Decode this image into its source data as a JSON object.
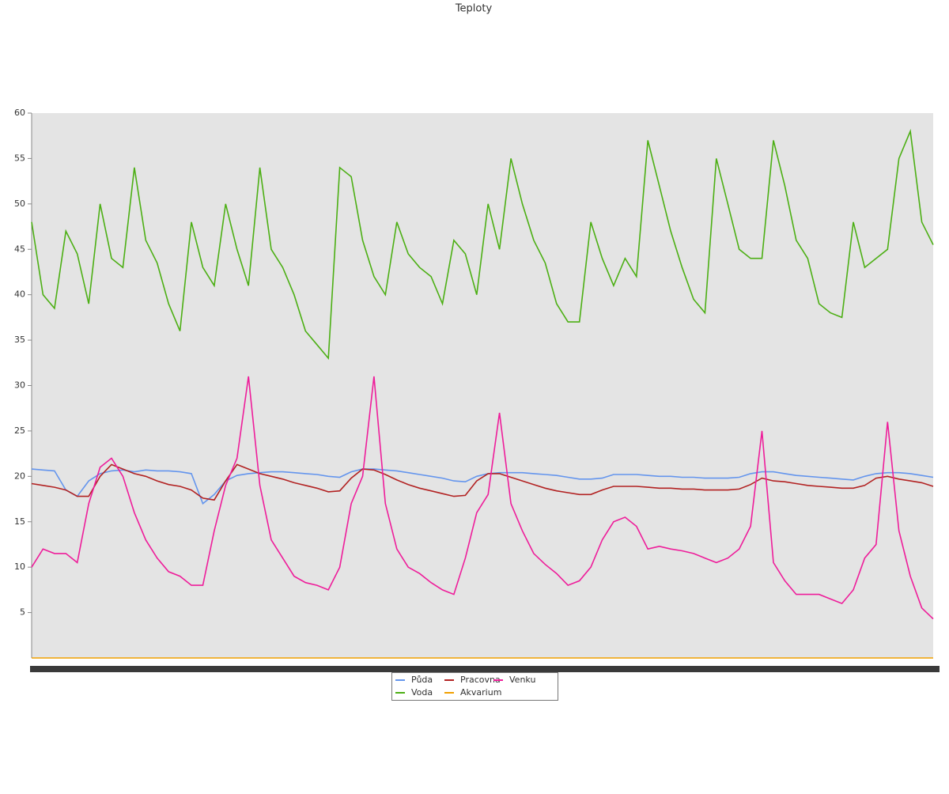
{
  "chart_data": {
    "type": "line",
    "title": "Teploty",
    "categories": [
      null,
      null,
      null,
      null,
      null,
      null,
      null,
      null,
      null,
      null,
      null,
      null,
      null,
      null,
      null,
      null,
      null,
      null,
      null,
      null,
      null,
      null,
      null,
      null,
      null,
      null,
      null,
      null,
      null,
      null,
      null,
      null,
      null,
      null,
      null,
      null,
      null,
      null,
      null,
      null,
      null,
      null,
      null,
      null,
      null,
      null,
      null,
      null,
      null,
      null,
      null,
      null,
      null,
      null,
      null,
      null,
      null,
      null,
      null,
      null,
      null,
      null,
      null,
      null,
      null,
      null,
      null,
      null,
      null,
      null,
      null,
      null,
      null,
      null,
      null,
      null,
      null,
      null,
      null,
      null
    ],
    "ylim": [
      0,
      60
    ],
    "yticks": [
      5,
      10,
      15,
      20,
      25,
      30,
      35,
      40,
      45,
      50,
      55,
      60
    ],
    "series": [
      {
        "name": "Půda",
        "color": "#6495ed",
        "values": [
          20.8,
          20.7,
          20.6,
          18.5,
          17.8,
          19.5,
          20.3,
          20.6,
          20.7,
          20.5,
          20.7,
          20.6,
          20.6,
          20.5,
          20.3,
          17,
          18,
          19.5,
          20.1,
          20.3,
          20.4,
          20.5,
          20.5,
          20.4,
          20.3,
          20.2,
          20,
          19.9,
          20.5,
          20.8,
          20.8,
          20.7,
          20.6,
          20.4,
          20.2,
          20,
          19.8,
          19.5,
          19.4,
          20,
          20.3,
          20.4,
          20.4,
          20.4,
          20.3,
          20.2,
          20.1,
          19.9,
          19.7,
          19.7,
          19.8,
          20.2,
          20.2,
          20.2,
          20.1,
          20,
          20,
          19.9,
          19.9,
          19.8,
          19.8,
          19.8,
          19.9,
          20.3,
          20.5,
          20.5,
          20.3,
          20.1,
          20,
          19.9,
          19.8,
          19.7,
          19.6,
          20,
          20.3,
          20.4,
          20.4,
          20.3,
          20.1,
          19.9
        ]
      },
      {
        "name": "Voda",
        "color": "#4caf14",
        "values": [
          48,
          40,
          38.5,
          47,
          44.5,
          39,
          50,
          44,
          43,
          54,
          46,
          43.5,
          39,
          36,
          48,
          43,
          41,
          50,
          45,
          41,
          54,
          45,
          43,
          40,
          36,
          34.5,
          33,
          54,
          53,
          46,
          42,
          40,
          48,
          44.5,
          43,
          42,
          39,
          46,
          44.5,
          40,
          50,
          45,
          55,
          50,
          46,
          43.5,
          39,
          37,
          37,
          48,
          44,
          41,
          44,
          42,
          57,
          52,
          47,
          43,
          39.5,
          38,
          55,
          50,
          45,
          44,
          44,
          57,
          52,
          46,
          44,
          39,
          38,
          37.5,
          48,
          43,
          44,
          45,
          55,
          58,
          48,
          45.5
        ]
      },
      {
        "name": "Pracovna",
        "color": "#b22222",
        "values": [
          19.2,
          19,
          18.8,
          18.5,
          17.8,
          17.8,
          20,
          21.3,
          20.8,
          20.3,
          20,
          19.5,
          19.1,
          18.9,
          18.5,
          17.6,
          17.4,
          19.5,
          21.3,
          20.8,
          20.3,
          20,
          19.7,
          19.3,
          19,
          18.7,
          18.3,
          18.4,
          19.8,
          20.8,
          20.7,
          20.2,
          19.6,
          19.1,
          18.7,
          18.4,
          18.1,
          17.8,
          17.9,
          19.5,
          20.3,
          20.3,
          19.9,
          19.5,
          19.1,
          18.7,
          18.4,
          18.2,
          18,
          18,
          18.5,
          18.9,
          18.9,
          18.9,
          18.8,
          18.7,
          18.7,
          18.6,
          18.6,
          18.5,
          18.5,
          18.5,
          18.6,
          19.1,
          19.8,
          19.5,
          19.4,
          19.2,
          19,
          18.9,
          18.8,
          18.7,
          18.7,
          19,
          19.8,
          20,
          19.7,
          19.5,
          19.3,
          18.9
        ]
      },
      {
        "name": "Akvarium",
        "color": "#f0a000",
        "values": [
          0,
          0,
          0,
          0,
          0,
          0,
          0,
          0,
          0,
          0,
          0,
          0,
          0,
          0,
          0,
          0,
          0,
          0,
          0,
          0,
          0,
          0,
          0,
          0,
          0,
          0,
          0,
          0,
          0,
          0,
          0,
          0,
          0,
          0,
          0,
          0,
          0,
          0,
          0,
          0,
          0,
          0,
          0,
          0,
          0,
          0,
          0,
          0,
          0,
          0,
          0,
          0,
          0,
          0,
          0,
          0,
          0,
          0,
          0,
          0,
          0,
          0,
          0,
          0,
          0,
          0,
          0,
          0,
          0,
          0,
          0,
          0,
          0,
          0,
          0,
          0,
          0,
          0,
          0,
          0
        ]
      },
      {
        "name": "Venku",
        "color": "#ee1d9a",
        "values": [
          10,
          12,
          11.5,
          11.5,
          10.5,
          17,
          21,
          22,
          20,
          16,
          13,
          11,
          9.5,
          9,
          8,
          8,
          14,
          19,
          22,
          31,
          19,
          13,
          11,
          9,
          8.3,
          8,
          7.5,
          10,
          17,
          20,
          31,
          17,
          12,
          10,
          9.3,
          8.3,
          7.5,
          7,
          11,
          16,
          18,
          27,
          17,
          14,
          11.5,
          10.3,
          9.3,
          8,
          8.5,
          10,
          13,
          15,
          15.5,
          14.5,
          12,
          12.3,
          12,
          11.8,
          11.5,
          11,
          10.5,
          11,
          12,
          14.5,
          25,
          10.5,
          8.5,
          7,
          7,
          7,
          6.5,
          6,
          7.5,
          11,
          12.5,
          26,
          14,
          9,
          5.5,
          4.3
        ]
      }
    ]
  }
}
